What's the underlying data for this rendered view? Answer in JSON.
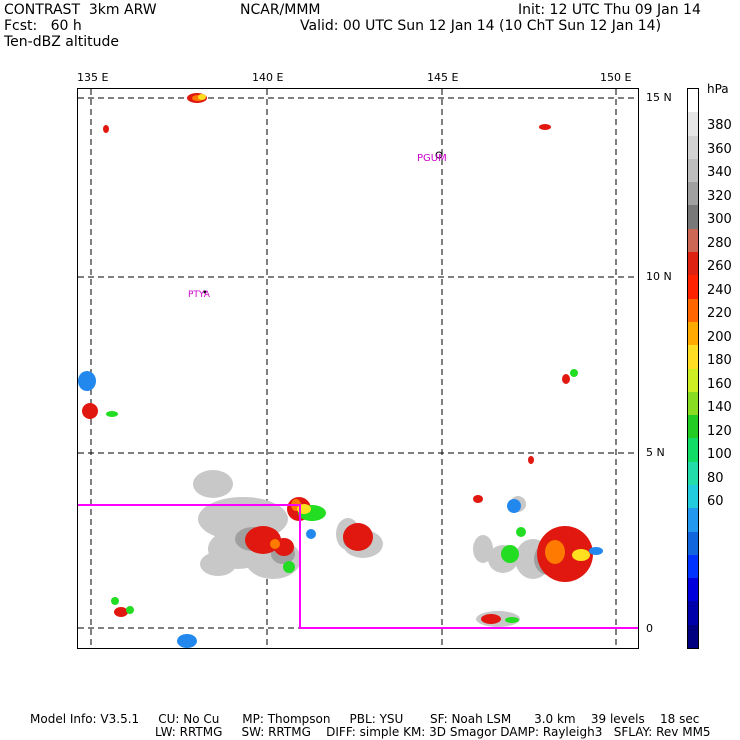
{
  "header": {
    "model": "CONTRAST  3km ARW",
    "forecast": "Fcst:   60 h",
    "field": "Ten-dBZ altitude",
    "center": "NCAR/MMM",
    "init": "Init: 12 UTC Thu 09 Jan 14",
    "valid": "Valid: 00 UTC Sun 12 Jan 14 (10 ChT Sun 12 Jan 14)"
  },
  "map": {
    "lon_labels": [
      "135 E",
      "140 E",
      "145 E",
      "150 E"
    ],
    "lat_labels": [
      "15 N",
      "10 N",
      "5 N",
      "0"
    ],
    "stations": [
      "PGUM",
      "PTYA"
    ],
    "domain_box_color": "#ff00ff"
  },
  "colorbar": {
    "unit": "hPa",
    "labels": [
      "380",
      "360",
      "340",
      "320",
      "300",
      "280",
      "260",
      "240",
      "220",
      "200",
      "180",
      "160",
      "140",
      "120",
      "100",
      "80",
      "60"
    ],
    "colors": [
      "#ffffff",
      "#e6e6e6",
      "#d2d2d2",
      "#bebebe",
      "#a0a0a0",
      "#787878",
      "#cc6655",
      "#dd2211",
      "#ff2200",
      "#ff6600",
      "#ffaa00",
      "#ffdd22",
      "#ccee22",
      "#88dd22",
      "#22cc22",
      "#11dd66",
      "#22ddaa",
      "#22ccdd",
      "#2299ee",
      "#1166dd",
      "#0033ff",
      "#0000dd",
      "#0000aa",
      "#000080"
    ]
  },
  "footer": {
    "line1": "Model Info: V3.5.1     CU: No Cu      MP: Thompson     PBL: YSU       SF: Noah LSM      3.0 km    39 levels    18 sec",
    "line2": "LW: RRTMG     SW: RRTMG    DIFF: simple KM: 3D Smagor DAMP: Rayleigh3   SFLAY: Rev MM5"
  }
}
